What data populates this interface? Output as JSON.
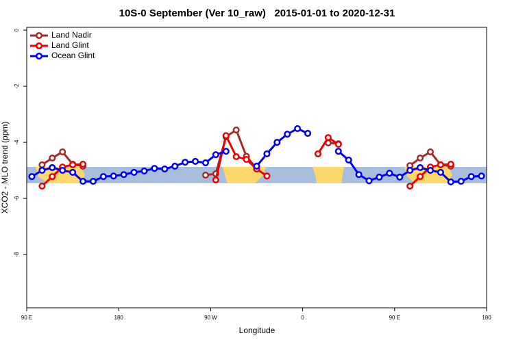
{
  "chart_data": {
    "type": "line",
    "title": "10S-0 September (Ver 10_raw)   2015-01-01 to 2020-12-31",
    "x_label": "Longitude",
    "y_label": "XCO2 - MLO trend (ppm)",
    "x": [
      95,
      105,
      115,
      125,
      135,
      145,
      155,
      165,
      175,
      185,
      195,
      205,
      215,
      225,
      235,
      245,
      255,
      265,
      275,
      285,
      295,
      305,
      315,
      325,
      335,
      345,
      355,
      365,
      375,
      385,
      395,
      405,
      415,
      425,
      435,
      445,
      455,
      465,
      475,
      485,
      495,
      505,
      515,
      525,
      535
    ],
    "series": [
      {
        "name": "Land Nadir",
        "color": "#a52a2a",
        "values": [
          null,
          -4.8,
          -4.56,
          -4.34,
          -4.78,
          -4.85,
          null,
          null,
          null,
          null,
          null,
          null,
          null,
          null,
          null,
          null,
          null,
          -5.17,
          -5.12,
          -3.8,
          -3.56,
          -4.5,
          -4.93,
          null,
          null,
          null,
          null,
          null,
          null,
          -4.02,
          -4.05,
          null,
          null,
          null,
          null,
          null,
          null,
          -4.83,
          -4.56,
          -4.34,
          -4.8,
          -4.85,
          null,
          null,
          null
        ]
      },
      {
        "name": "Land Glint",
        "color": "#ee0000",
        "values": [
          null,
          -5.56,
          -5.22,
          -4.88,
          -4.8,
          -4.78,
          null,
          null,
          null,
          null,
          null,
          null,
          null,
          null,
          null,
          null,
          null,
          null,
          -5.34,
          -3.76,
          -4.51,
          -4.61,
          -4.95,
          -5.2,
          null,
          null,
          null,
          null,
          -4.41,
          -3.83,
          -4.07,
          null,
          null,
          null,
          null,
          null,
          null,
          -5.56,
          -5.22,
          -4.88,
          -4.8,
          -4.78,
          null,
          null,
          null
        ]
      },
      {
        "name": "Ocean Glint",
        "color": "#0000ee",
        "values": [
          -5.22,
          -5.0,
          -4.9,
          -5.0,
          -5.07,
          -5.39,
          -5.39,
          -5.22,
          -5.2,
          -5.15,
          -5.07,
          -5.02,
          -4.93,
          -4.95,
          -4.85,
          -4.71,
          -4.68,
          -4.73,
          -4.44,
          -4.32,
          null,
          null,
          -4.85,
          -4.41,
          -4.0,
          -3.71,
          -3.51,
          -3.68,
          null,
          null,
          -4.32,
          -4.63,
          -5.15,
          -5.37,
          -5.24,
          -5.1,
          -5.24,
          -5.0,
          -4.9,
          -5.0,
          -5.07,
          -5.41,
          -5.39,
          -5.22,
          -5.2
        ]
      }
    ],
    "xlim": [
      90,
      540
    ],
    "xticks": [
      {
        "value": 90,
        "label": "90 E"
      },
      180,
      {
        "value": 270,
        "label": "90 W"
      },
      {
        "value": 360,
        "label": "0"
      },
      {
        "value": 450,
        "label": "90 E"
      },
      {
        "value": 540,
        "label": "180"
      }
    ],
    "ylim": [
      -9.9,
      0.1
    ],
    "yticks": [
      0,
      -2,
      -4,
      -6,
      -8
    ],
    "legend": "top-left"
  }
}
